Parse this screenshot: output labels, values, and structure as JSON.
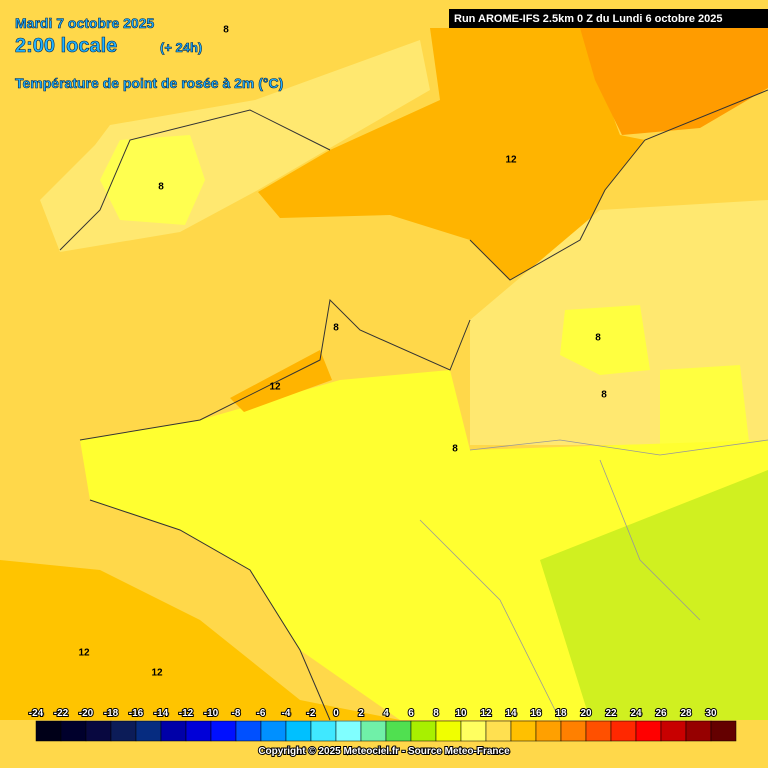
{
  "header": {
    "date": "Mardi 7 octobre 2025",
    "time": "2:00 locale",
    "lead": "(+ 24h)",
    "parameter": "Température de point de rosée à 2m (°C)",
    "run": "Run AROME-IFS 2.5km 0 Z du Lundi 6 octobre 2025"
  },
  "contour_labels": [
    8,
    12,
    8,
    8,
    8,
    12,
    8,
    8,
    12,
    12
  ],
  "legend": {
    "values": [
      -24,
      -22,
      -20,
      -18,
      -16,
      -14,
      -12,
      -10,
      -8,
      -6,
      -4,
      -2,
      0,
      2,
      4,
      6,
      8,
      10,
      12,
      14,
      16,
      18,
      20,
      22,
      24,
      26,
      28,
      30
    ],
    "colors": [
      "#000018",
      "#00002c",
      "#080840",
      "#0c1c58",
      "#062c80",
      "#0000a8",
      "#0000d8",
      "#0010ff",
      "#0050ff",
      "#0090ff",
      "#00c0ff",
      "#40e8ff",
      "#80ffff",
      "#70f0a8",
      "#50e050",
      "#a8f000",
      "#f0ff00",
      "#ffff60",
      "#ffe050",
      "#ffc000",
      "#ffa000",
      "#ff8000",
      "#ff5000",
      "#ff2800",
      "#ff0000",
      "#c80000",
      "#960000",
      "#640000"
    ]
  },
  "footer": {
    "copyright": "Copyright © 2025 Meteociel.fr - Source Meteo-France"
  }
}
